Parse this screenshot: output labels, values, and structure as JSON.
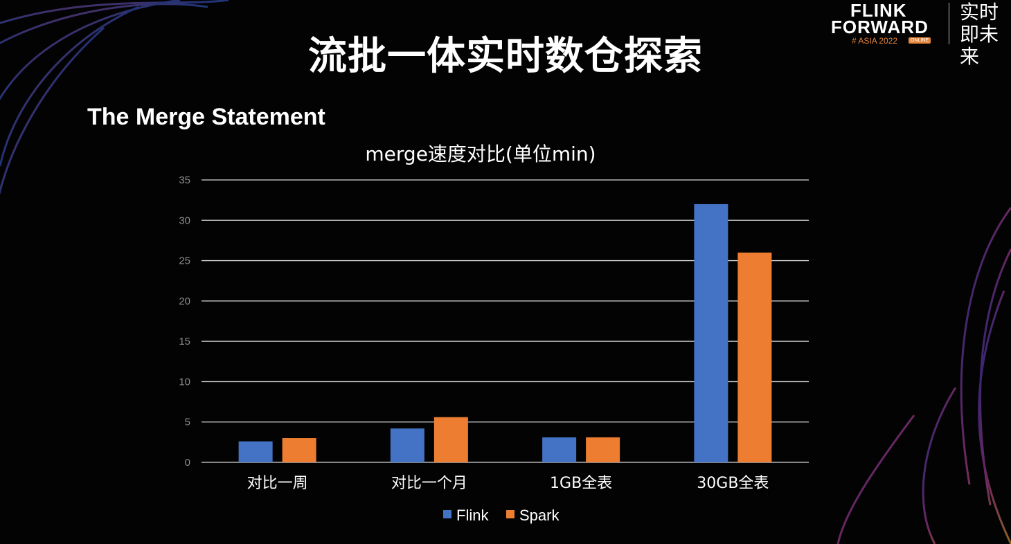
{
  "slide": {
    "title": "流批一体实时数仓探索",
    "subtitle": "The Merge Statement"
  },
  "logo": {
    "line1": "FLINK",
    "line2": "FORWARD",
    "line3": "# ASIA 2022",
    "badge": "ONLINE",
    "slogan": "实时即未来"
  },
  "colors": {
    "flink": "#4472c4",
    "spark": "#ed7d31",
    "grid": "#d9d9d9",
    "axis_text": "#8c8c8c"
  },
  "chart_data": {
    "type": "bar",
    "title": "merge速度对比(单位min)",
    "categories": [
      "对比一周",
      "对比一个月",
      "1GB全表",
      "30GB全表"
    ],
    "series": [
      {
        "name": "Flink",
        "values": [
          2.6,
          4.2,
          3.1,
          32
        ]
      },
      {
        "name": "Spark",
        "values": [
          3.0,
          5.6,
          3.1,
          26
        ]
      }
    ],
    "ylim": [
      0,
      35
    ],
    "yticks": [
      0,
      5,
      10,
      15,
      20,
      25,
      30,
      35
    ],
    "grid": true,
    "legend": "bottom"
  }
}
